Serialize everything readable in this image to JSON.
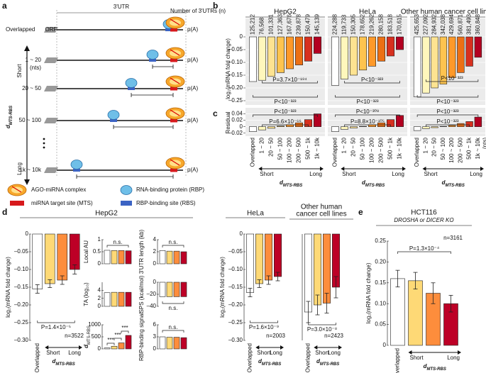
{
  "panel_labels": [
    "b",
    "c",
    "d",
    "e"
  ],
  "panel_a": {
    "label": "a",
    "utr": "3'UTR",
    "orf": "ORF",
    "polya": "p(A)",
    "rows": [
      "Overlapped",
      "1 ~ 20",
      "20 ~ 50",
      "50 ~ 100",
      "1k ~ 10k"
    ],
    "row_unit": "(nts)",
    "short": "Short",
    "long": "Long",
    "axis": "d",
    "axis_sub": "MTS-RBS",
    "legend": [
      "AGO-miRNA complex",
      "RNA-binding protein (RBP)",
      "miRNA target site (MTS)",
      "RBP-binding site (RBS)"
    ]
  },
  "chart_data": [
    {
      "type": "bar",
      "title": "HepG2",
      "n_title": "Number of 3'UTRs (n)",
      "ylabel": "log₂(mRNA fold change)",
      "n_labels": [
        "125,212",
        "76,568",
        "101,331",
        "127,363",
        "167,676",
        "239,878",
        "150,479",
        "145,139"
      ],
      "values": [
        -0.175,
        -0.17,
        -0.155,
        -0.14,
        -0.125,
        -0.11,
        -0.095,
        -0.065
      ],
      "colors": [
        "#ffffff",
        "#fff7bc",
        "#fee391",
        "#fec44f",
        "#fe9929",
        "#ec7014",
        "#d7301f",
        "#b30021"
      ],
      "ylim": [
        -0.25,
        0
      ],
      "yticks": [
        0,
        {
          "value": -0.05,
          "label": "–0.05"
        },
        {
          "value": -0.1,
          "label": "–0.10"
        },
        {
          "value": -0.15,
          "label": "–0.15"
        },
        {
          "value": -0.2,
          "label": "–0.20"
        },
        {
          "value": -0.25,
          "label": "–0.25"
        }
      ],
      "grid": true,
      "background": "#ebebeb",
      "annotations": [
        "P=3.7×10⁻¹⁹⁴",
        "P<10⁻³²³"
      ]
    },
    {
      "type": "bar",
      "title": "HeLa",
      "n_labels": [
        "224,288",
        "119,733",
        "150,305",
        "178,652",
        "219,262",
        "280,158",
        "183,518",
        "170,615"
      ],
      "values": [
        -0.19,
        -0.165,
        -0.15,
        -0.13,
        -0.115,
        -0.095,
        -0.075,
        -0.05
      ],
      "colors": [
        "#ffffff",
        "#fff7bc",
        "#fee391",
        "#fec44f",
        "#fe9929",
        "#ec7014",
        "#d7301f",
        "#b30021"
      ],
      "ylim": [
        -0.25,
        0
      ],
      "grid": true,
      "background": "#ebebeb",
      "annotations": [
        "P<10⁻³²³",
        "P<10⁻³²³"
      ]
    },
    {
      "type": "bar",
      "title": "Other human cancer cell lines",
      "n_labels": [
        "425,653",
        "227,092",
        "284,932",
        "342,038",
        "429,694",
        "560,871",
        "381,493",
        "360,848"
      ],
      "values": [
        -0.235,
        -0.22,
        -0.2,
        -0.185,
        -0.16,
        -0.14,
        -0.115,
        -0.08
      ],
      "colors": [
        "#ffffff",
        "#fff7bc",
        "#fee391",
        "#fec44f",
        "#fe9929",
        "#ec7014",
        "#d7301f",
        "#b30021"
      ],
      "ylim": [
        -0.25,
        0
      ],
      "grid": true,
      "background": "#ebebeb",
      "annotations": [
        "P<10⁻³²³",
        "P<10⁻³²³"
      ]
    },
    {
      "type": "bar",
      "ylabel": "Residual",
      "categories": [
        "Overlapped",
        "1 ~ 20",
        "20 ~ 50",
        "50 ~ 100",
        "100 ~ 200",
        "200 ~ 500",
        "500 ~ 1k",
        "1k ~ 10k"
      ],
      "values": [
        -0.015,
        -0.01,
        -0.005,
        0.002,
        0.006,
        0.012,
        0.022,
        0.04
      ],
      "colors": [
        "#ffffff",
        "#fff7bc",
        "#fee391",
        "#fec44f",
        "#fe9929",
        "#ec7014",
        "#d7301f",
        "#b30021"
      ],
      "ylim": [
        -0.025,
        0.05
      ],
      "yticks": [
        0.04,
        0.02,
        0,
        {
          "value": -0.02,
          "label": "–0.02"
        }
      ],
      "grid": true,
      "background": "#ebebeb",
      "annotations": [
        "P<10⁻³²³",
        "P=6.6×10⁻⁶⁶"
      ],
      "short": "Short",
      "long": "Long",
      "xlabel": "d",
      "xlabel_sub": "MTS-RBS"
    },
    {
      "type": "bar",
      "categories": [
        "Overlapped",
        "1 ~ 20",
        "20 ~ 50",
        "50 ~ 100",
        "100 ~ 200",
        "200 ~ 500",
        "500 ~ 1k",
        "1k ~ 10k"
      ],
      "values": [
        -0.015,
        -0.008,
        -0.004,
        0.001,
        0.006,
        0.012,
        0.022,
        0.035
      ],
      "colors": [
        "#ffffff",
        "#fff7bc",
        "#fee391",
        "#fec44f",
        "#fe9929",
        "#ec7014",
        "#d7301f",
        "#b30021"
      ],
      "ylim": [
        -0.025,
        0.05
      ],
      "grid": true,
      "background": "#ebebeb",
      "annotations": [
        "P<10⁻³⁰⁸",
        "P=8.8×10⁻¹⁰⁵"
      ],
      "short": "Short",
      "long": "Long",
      "xlabel": "d",
      "xlabel_sub": "MTS-RBS"
    },
    {
      "type": "bar",
      "categories": [
        "Overlapped",
        "1 ~ 20",
        "20 ~ 50",
        "50 ~ 100",
        "100 ~ 200",
        "200 ~ 500",
        "500 ~ 1k",
        "1k ~ 10k"
      ],
      "x_unit": "(nts)",
      "values": [
        -0.012,
        -0.006,
        -0.003,
        0.001,
        0.004,
        0.01,
        0.016,
        0.03
      ],
      "colors": [
        "#ffffff",
        "#fff7bc",
        "#fee391",
        "#fec44f",
        "#fe9929",
        "#ec7014",
        "#d7301f",
        "#b30021"
      ],
      "ylim": [
        -0.025,
        0.05
      ],
      "grid": true,
      "background": "#ebebeb",
      "annotations": [
        "P<10⁻³²³",
        "P<10⁻³²³"
      ],
      "short": "Short",
      "long": "Long",
      "xlabel": "d",
      "xlabel_sub": "MTS-RBS"
    },
    {
      "type": "bar",
      "title": "HepG2",
      "ylabel": "log₂(mRNA fold change)",
      "categories": [
        "Overlapped",
        null,
        null,
        null
      ],
      "values": [
        -0.155,
        -0.14,
        -0.13,
        -0.1
      ],
      "errors": [
        0.012,
        0.011,
        0.012,
        0.013
      ],
      "colors": [
        "#ffffff",
        "#fed976",
        "#fd8d3c",
        "#bd0026"
      ],
      "ylim": [
        -0.3,
        0
      ],
      "yticks": [
        0,
        {
          "value": -0.05,
          "label": "–0.05"
        },
        {
          "value": -0.1,
          "label": "–0.10"
        },
        {
          "value": -0.15,
          "label": "–0.15"
        },
        {
          "value": -0.2,
          "label": "–0.20"
        },
        {
          "value": -0.25,
          "label": "–0.25"
        },
        {
          "value": -0.3,
          "label": "–0.30"
        }
      ],
      "annotations": [
        "P=1.4×10⁻⁵"
      ],
      "n_text": "n=3522",
      "short": "Short",
      "long": "Long",
      "xlabel": "d",
      "xlabel_sub": "MTS-RBS"
    },
    {
      "type": "bar",
      "ylabel": "Local AU",
      "values": [
        0.56,
        0.55,
        0.55,
        0.54
      ],
      "colors": [
        "#ffffff",
        "#fed976",
        "#fd8d3c",
        "#bd0026"
      ],
      "ylim": [
        0,
        1
      ],
      "yticks": [
        0,
        0.5,
        1
      ],
      "annotations": [
        "n.s."
      ]
    },
    {
      "type": "bar",
      "ylabel": "3'UTR length (kb)",
      "values": [
        2.2,
        2.1,
        2.1,
        2.0
      ],
      "colors": [
        "#ffffff",
        "#fed976",
        "#fd8d3c",
        "#bd0026"
      ],
      "ylim": [
        0,
        4
      ],
      "yticks": [
        0,
        2,
        4
      ],
      "annotations": [
        "n.s."
      ]
    },
    {
      "type": "bar",
      "ylabel": "TA (log₁₀)",
      "values": [
        3.4,
        3.5,
        3.5,
        3.5
      ],
      "colors": [
        "#ffffff",
        "#fed976",
        "#fd8d3c",
        "#bd0026"
      ],
      "ylim": [
        0,
        6
      ],
      "yticks": [
        0,
        2,
        4
      ]
    },
    {
      "type": "bar",
      "ylabel": "SPS (kcal/mol)",
      "values": [
        -24,
        -24,
        -24,
        -24
      ],
      "colors": [
        "#ffffff",
        "#fed976",
        "#fd8d3c",
        "#bd0026"
      ],
      "ylim": [
        -40,
        0
      ],
      "yticks": [
        0,
        {
          "value": -20,
          "label": "–20"
        },
        {
          "value": -40,
          "label": "–40"
        }
      ],
      "annotations": [
        "n.s."
      ]
    },
    {
      "type": "bar",
      "ylabel": "d",
      "ylabel_sub": "MTS-RBS",
      "values": [
        40,
        110,
        250,
        560
      ],
      "colors": [
        "#ffffff",
        "#fed976",
        "#fd8d3c",
        "#bd0026"
      ],
      "ylim": [
        0,
        1000
      ],
      "yticks": [
        0,
        500,
        1000
      ],
      "annotations": [
        "***",
        "***",
        "***"
      ]
    },
    {
      "type": "bar",
      "ylabel": "RBP-binding signal",
      "values": [
        3,
        2.9,
        2.9,
        2.8
      ],
      "colors": [
        "#ffffff",
        "#fed976",
        "#fd8d3c",
        "#bd0026"
      ],
      "ylim": [
        0,
        6
      ],
      "yticks": [
        0,
        3,
        6
      ],
      "annotations": [
        "n.s."
      ]
    },
    {
      "type": "bar",
      "title": "HeLa",
      "ylabel": "log₂(mRNA fold change)",
      "categories": [
        "Overlapped",
        null,
        null,
        null
      ],
      "values": [
        -0.165,
        -0.14,
        -0.13,
        -0.12
      ],
      "errors": [
        0.012,
        0.011,
        0.012,
        0.012
      ],
      "colors": [
        "#ffffff",
        "#fed976",
        "#fd8d3c",
        "#bd0026"
      ],
      "ylim": [
        -0.3,
        0
      ],
      "yticks": [
        0,
        {
          "value": -0.05,
          "label": "–0.05"
        },
        {
          "value": -0.1,
          "label": "–0.10"
        },
        {
          "value": -0.15,
          "label": "–0.15"
        },
        {
          "value": -0.2,
          "label": "–0.20"
        },
        {
          "value": -0.25,
          "label": "–0.25"
        },
        {
          "value": -0.3,
          "label": "–0.30"
        }
      ],
      "annotations": [
        "P=1.6×10⁻⁹"
      ],
      "n_text": "n=2003",
      "short": "Short",
      "long": "Long",
      "xlabel": "d",
      "xlabel_sub": "MTS-RBS"
    },
    {
      "type": "bar",
      "title": [
        "Other human",
        "cancer cell lines"
      ],
      "categories": [
        "Overlapped",
        null,
        null,
        null
      ],
      "values": [
        -0.22,
        -0.2,
        -0.195,
        -0.15
      ],
      "errors": [
        0.03,
        0.028,
        0.028,
        0.03
      ],
      "colors": [
        "#ffffff",
        "#fed976",
        "#fd8d3c",
        "#bd0026"
      ],
      "ylim": [
        -0.3,
        0
      ],
      "annotations": [
        "P=3.0×10⁻⁸"
      ],
      "n_text": "n=2423",
      "short": "Short",
      "long": "Long",
      "xlabel": "d",
      "xlabel_sub": "MTS-RBS"
    },
    {
      "type": "bar",
      "title": "HCT116",
      "subtitle": "DROSHA or DICER KO",
      "ylabel": "log₂(mRNA fold change)",
      "categories": [
        "Overlapped",
        null,
        null,
        null
      ],
      "values": [
        0.16,
        0.155,
        0.125,
        0.1
      ],
      "errors": [
        0.02,
        0.02,
        0.025,
        0.02
      ],
      "colors": [
        "#ffffff",
        "#fed976",
        "#fd8d3c",
        "#bd0026"
      ],
      "ylim": [
        0,
        0.25
      ],
      "yticks": [
        0,
        0.05,
        {
          "value": 0.1,
          "label": "0.10"
        },
        0.15,
        {
          "value": 0.2,
          "label": "0.20"
        },
        0.25
      ],
      "annotations": [
        "P=1.3×10⁻⁴"
      ],
      "n_text": "n=3161",
      "short": "Short",
      "long": "Long",
      "xlabel": "d",
      "xlabel_sub": "MTS-RBS"
    }
  ]
}
